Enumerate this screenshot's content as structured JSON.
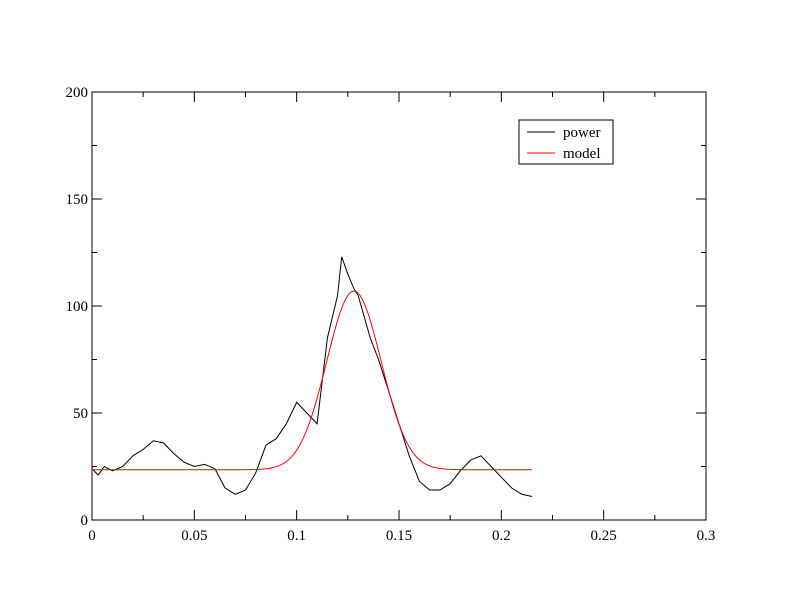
{
  "chart_data": {
    "type": "line",
    "xlim": [
      0,
      0.3
    ],
    "ylim": [
      0,
      200
    ],
    "x_ticks": [
      0,
      0.05,
      0.1,
      0.15,
      0.2,
      0.25,
      0.3
    ],
    "x_tick_labels": [
      "0",
      "0.05",
      "0.1",
      "0.15",
      "0.2",
      "0.25",
      "0.3"
    ],
    "y_ticks": [
      0,
      50,
      100,
      150,
      200
    ],
    "y_tick_labels": [
      "0",
      "50",
      "100",
      "150",
      "200"
    ],
    "grid": false,
    "legend_position": "top-right",
    "series": [
      {
        "name": "power",
        "color": "#000000",
        "x": [
          0,
          0.003,
          0.006,
          0.01,
          0.015,
          0.02,
          0.025,
          0.03,
          0.035,
          0.04,
          0.045,
          0.05,
          0.055,
          0.06,
          0.065,
          0.07,
          0.075,
          0.08,
          0.085,
          0.09,
          0.095,
          0.1,
          0.105,
          0.11,
          0.115,
          0.12,
          0.122,
          0.125,
          0.128,
          0.13,
          0.133,
          0.136,
          0.14,
          0.145,
          0.15,
          0.155,
          0.16,
          0.165,
          0.17,
          0.175,
          0.18,
          0.185,
          0.19,
          0.195,
          0.2,
          0.205,
          0.21,
          0.215
        ],
        "y": [
          24,
          21,
          25,
          23,
          25,
          30,
          33,
          37,
          36,
          31,
          27,
          25,
          26,
          24,
          15,
          12,
          14,
          22,
          35,
          38,
          45,
          55,
          50,
          45,
          85,
          105,
          123,
          115,
          108,
          105,
          95,
          85,
          75,
          60,
          45,
          30,
          18,
          14,
          14,
          17,
          23,
          28,
          30,
          25,
          20,
          15,
          12,
          11
        ]
      },
      {
        "name": "model",
        "color": "#ff0000",
        "model": {
          "baseline": 23.5,
          "amplitude": 83.5,
          "center": 0.128,
          "sigma": 0.0133,
          "x_start": 0,
          "x_end": 0.215
        }
      }
    ]
  }
}
